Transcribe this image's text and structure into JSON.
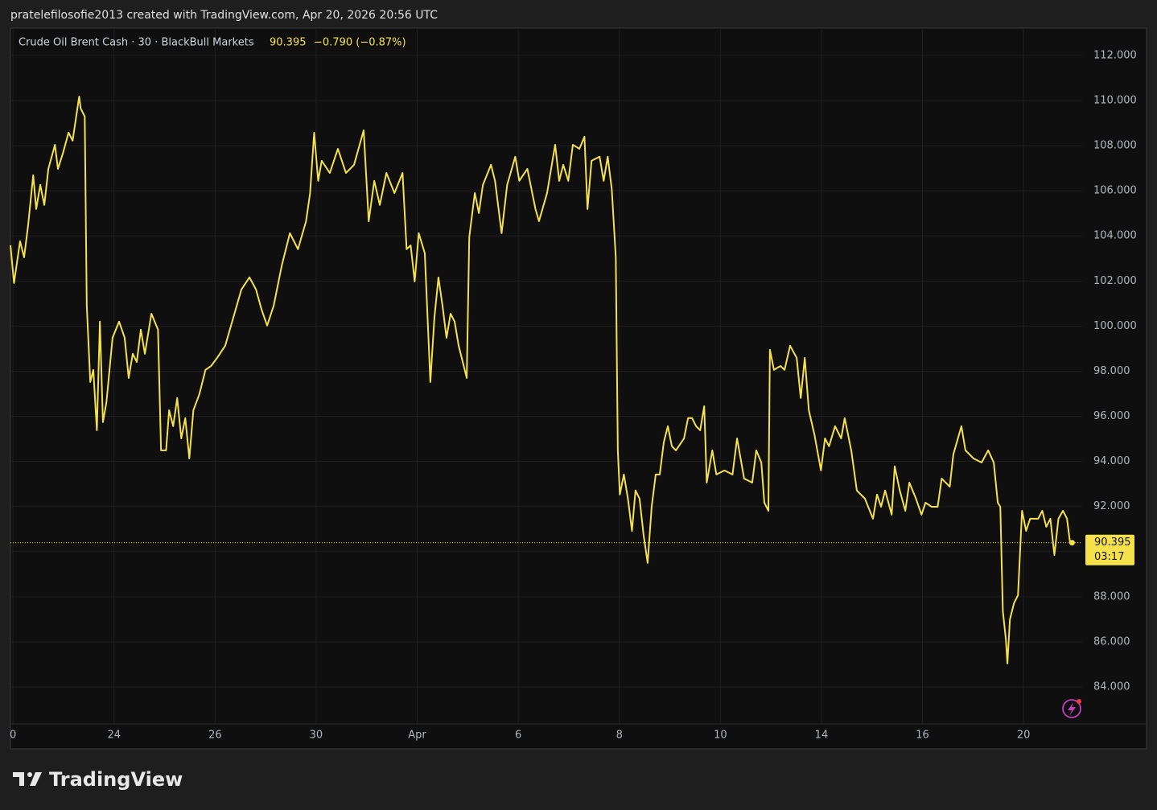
{
  "header": {
    "attribution": "pratelefilosofie2013 created with TradingView.com, Apr 20, 2026 20:56 UTC",
    "logo": "TradingView"
  },
  "chart_data": {
    "type": "line",
    "title": "Crude Oil Brent Cash · 30 · BlackBull Markets",
    "change": "−0.790 (−0.87%)",
    "countdown": "03:17",
    "color": "#f5e14b",
    "x": [
      -0.05,
      0.02,
      0.14,
      0.22,
      0.3,
      0.4,
      0.46,
      0.54,
      0.62,
      0.7,
      0.83,
      0.89,
      0.99,
      1.1,
      1.18,
      1.31,
      1.34,
      1.42,
      1.46,
      1.53,
      1.59,
      1.66,
      1.72,
      1.78,
      1.85,
      1.97,
      2.1,
      2.21,
      2.29,
      2.37,
      2.45,
      2.53,
      2.61,
      2.74,
      2.87,
      2.93,
      3.03,
      3.09,
      3.17,
      3.25,
      3.33,
      3.41,
      3.49,
      3.57,
      3.69,
      3.81,
      3.92,
      4.04,
      4.2,
      4.36,
      4.52,
      4.68,
      4.81,
      4.92,
      5.03,
      5.16,
      5.32,
      5.48,
      5.64,
      5.8,
      5.88,
      5.96,
      6.04,
      6.11,
      6.27,
      6.43,
      6.59,
      6.75,
      6.94,
      7.04,
      7.15,
      7.26,
      7.39,
      7.55,
      7.71,
      7.79,
      7.87,
      7.95,
      8.03,
      8.15,
      8.26,
      8.34,
      8.42,
      8.5,
      8.58,
      8.66,
      8.74,
      8.82,
      8.98,
      9.03,
      9.14,
      9.22,
      9.3,
      9.46,
      9.54,
      9.67,
      9.78,
      9.94,
      10.02,
      10.18,
      10.34,
      10.41,
      10.57,
      10.73,
      10.81,
      10.89,
      10.99,
      11.08,
      11.21,
      11.31,
      11.37,
      11.45,
      11.61,
      11.69,
      11.77,
      11.85,
      11.93,
      11.97,
      12.01,
      12.09,
      12.17,
      12.25,
      12.32,
      12.4,
      12.48,
      12.56,
      12.64,
      12.72,
      12.8,
      12.88,
      12.96,
      13.04,
      13.12,
      13.28,
      13.36,
      13.44,
      13.52,
      13.6,
      13.68,
      13.73,
      13.84,
      13.92,
      14.08,
      14.24,
      14.33,
      14.47,
      14.63,
      14.71,
      14.81,
      14.87,
      14.95,
      14.98,
      15.06,
      15.19,
      15.27,
      15.38,
      15.51,
      15.59,
      15.67,
      15.75,
      15.86,
      15.99,
      16.07,
      16.15,
      16.27,
      16.39,
      16.46,
      16.59,
      16.7,
      16.86,
      17.02,
      17.1,
      17.18,
      17.26,
      17.39,
      17.45,
      17.55,
      17.66,
      17.74,
      17.87,
      17.98,
      18.06,
      18.18,
      18.3,
      18.38,
      18.54,
      18.61,
      18.77,
      18.85,
      19.01,
      19.17,
      19.3,
      19.41,
      19.49,
      19.54,
      19.59,
      19.65,
      19.68,
      19.73,
      19.81,
      19.89,
      19.97,
      20.05,
      20.13,
      20.29,
      20.37,
      20.45,
      20.53,
      20.61,
      20.69,
      20.78,
      20.86,
      20.92,
      20.96
    ],
    "values": [
      103.58,
      101.91,
      103.76,
      103.05,
      104.48,
      106.69,
      105.19,
      106.26,
      105.37,
      106.97,
      108.04,
      106.97,
      107.68,
      108.58,
      108.22,
      110.18,
      109.65,
      109.29,
      100.91,
      97.52,
      98.06,
      95.38,
      100.2,
      95.74,
      96.63,
      99.48,
      100.2,
      99.48,
      97.7,
      98.77,
      98.41,
      99.84,
      98.77,
      100.55,
      99.84,
      94.49,
      94.49,
      96.27,
      95.56,
      96.81,
      95.02,
      95.92,
      94.13,
      96.27,
      96.99,
      98.06,
      98.23,
      98.59,
      99.13,
      100.37,
      101.62,
      102.16,
      101.62,
      100.73,
      100.02,
      100.91,
      102.69,
      104.12,
      103.41,
      104.65,
      105.9,
      108.58,
      106.44,
      107.33,
      106.79,
      107.86,
      106.79,
      107.15,
      108.68,
      104.65,
      106.44,
      105.37,
      106.79,
      105.9,
      106.79,
      103.41,
      103.58,
      101.98,
      104.12,
      103.23,
      97.52,
      100.37,
      102.16,
      100.91,
      99.48,
      100.55,
      100.2,
      99.13,
      97.7,
      103.94,
      105.9,
      105.01,
      106.26,
      107.15,
      106.44,
      104.12,
      106.26,
      107.51,
      106.44,
      106.97,
      105.19,
      104.65,
      105.9,
      108.04,
      106.44,
      107.15,
      106.44,
      108.04,
      107.86,
      108.4,
      105.19,
      107.33,
      107.51,
      106.44,
      107.51,
      106.08,
      103.05,
      94.49,
      92.53,
      93.42,
      92.35,
      90.92,
      92.71,
      92.35,
      90.74,
      89.5,
      91.99,
      93.42,
      93.42,
      94.85,
      95.56,
      94.67,
      94.49,
      95.02,
      95.92,
      95.92,
      95.56,
      95.38,
      96.45,
      93.06,
      94.49,
      93.42,
      93.6,
      93.42,
      95.02,
      93.24,
      93.06,
      94.49,
      93.95,
      92.17,
      91.81,
      98.95,
      98.06,
      98.23,
      98.06,
      99.13,
      98.59,
      96.81,
      98.59,
      96.27,
      95.2,
      93.6,
      95.02,
      94.67,
      95.56,
      95.02,
      95.92,
      94.49,
      92.71,
      92.35,
      91.46,
      92.53,
      91.99,
      92.71,
      91.64,
      93.78,
      92.71,
      91.81,
      93.06,
      92.35,
      91.64,
      92.17,
      91.99,
      91.99,
      93.24,
      92.88,
      94.31,
      95.56,
      94.49,
      94.13,
      93.95,
      94.49,
      93.95,
      92.17,
      91.99,
      87.36,
      86.11,
      85.04,
      87.0,
      87.71,
      88.07,
      91.81,
      90.92,
      91.46,
      91.46,
      91.81,
      91.1,
      91.46,
      89.85,
      91.46,
      91.81,
      91.46,
      90.39,
      90.395
    ],
    "xlim": [
      -0.05,
      21.16
    ],
    "xticks": [
      {
        "value": 0,
        "label": "0"
      },
      {
        "value": 2,
        "label": "24"
      },
      {
        "value": 4,
        "label": "26"
      },
      {
        "value": 6,
        "label": "30"
      },
      {
        "value": 8,
        "label": "Apr"
      },
      {
        "value": 10,
        "label": "6"
      },
      {
        "value": 12,
        "label": "8"
      },
      {
        "value": 14,
        "label": "10"
      },
      {
        "value": 16,
        "label": "14"
      },
      {
        "value": 18,
        "label": "16"
      },
      {
        "value": 20,
        "label": "20"
      }
    ],
    "ylim": [
      82.36,
      113.21
    ],
    "yticks": [
      {
        "value": 84,
        "label": "84.000"
      },
      {
        "value": 86,
        "label": "86.000"
      },
      {
        "value": 88,
        "label": "88.000"
      },
      {
        "value": 90,
        "label": "90.000"
      },
      {
        "value": 92,
        "label": "92.000"
      },
      {
        "value": 94,
        "label": "94.000"
      },
      {
        "value": 96,
        "label": "96.000"
      },
      {
        "value": 98,
        "label": "98.000"
      },
      {
        "value": 100,
        "label": "100.000"
      },
      {
        "value": 102,
        "label": "102.000"
      },
      {
        "value": 104,
        "label": "104.000"
      },
      {
        "value": 106,
        "label": "106.000"
      },
      {
        "value": 108,
        "label": "108.000"
      },
      {
        "value": 110,
        "label": "110.000"
      },
      {
        "value": 112,
        "label": "112.000"
      }
    ],
    "grid": true
  }
}
